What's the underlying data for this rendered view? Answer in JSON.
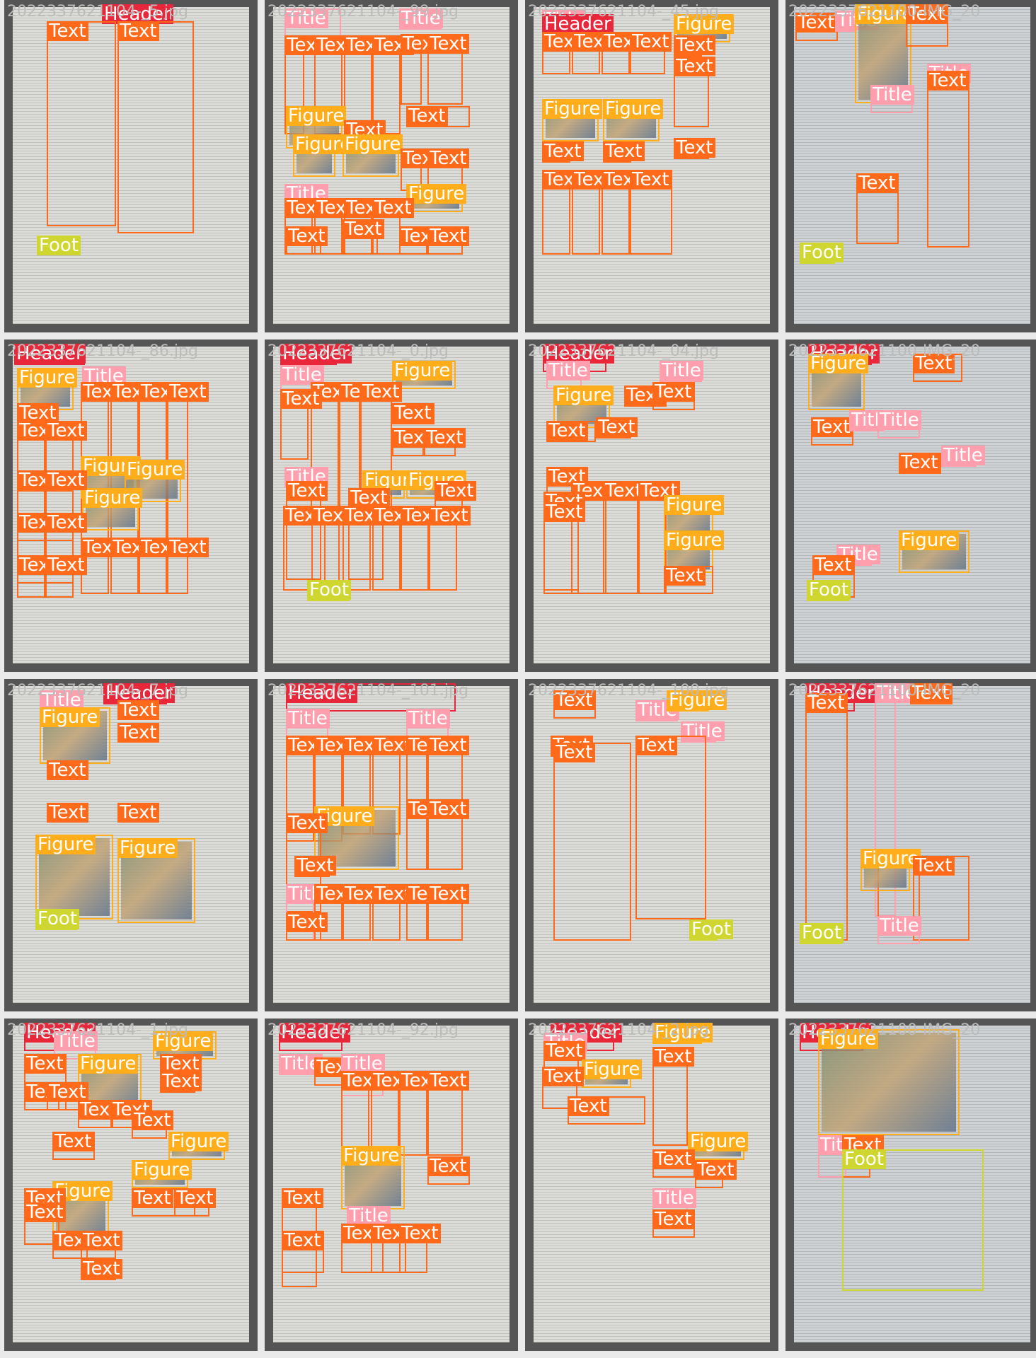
{
  "tiles": [
    {
      "filename": "2022337621104-_5.jpg",
      "labels": [
        "Header",
        "Text",
        "Text",
        "Foot"
      ]
    },
    {
      "filename": "2022337621104-_99.jpg",
      "labels": [
        "Title",
        "Title",
        "Text",
        "Text",
        "Text",
        "Text",
        "Text",
        "Text",
        "Figure",
        "Text",
        "Text",
        "Figure",
        "Figure",
        "Text",
        "Text",
        "Figure",
        "Title",
        "Text",
        "Text",
        "Text",
        "Text",
        "Text",
        "Text",
        "Text",
        "Text"
      ]
    },
    {
      "filename": "2022337621104-_45.jpg",
      "labels": [
        "Title",
        "Header",
        "Figure",
        "Text",
        "Text",
        "Text",
        "Text",
        "Text",
        "Text",
        "Figure",
        "Figure",
        "Text",
        "Text",
        "Text",
        "Text",
        "Text",
        "Text",
        "Text"
      ]
    },
    {
      "filename": "2022337621100-IMG_20",
      "labels": [
        "Text",
        "Title",
        "Figure",
        "Text",
        "Title",
        "Title",
        "Text",
        "Text",
        "Foot"
      ]
    },
    {
      "filename": "2022337621104-_86.jpg",
      "labels": [
        "Header",
        "Figure",
        "Title",
        "Text",
        "Text",
        "Text",
        "Text",
        "Text",
        "Text",
        "Text",
        "Figure",
        "Figure",
        "Figure",
        "Text",
        "Text",
        "Text",
        "Text",
        "Text",
        "Text",
        "Text",
        "Text",
        "Text",
        "Text"
      ]
    },
    {
      "filename": "2022337621104-_0.jpg",
      "labels": [
        "Header",
        "Title",
        "Figure",
        "Text",
        "Text",
        "Text",
        "Text",
        "Text",
        "Text",
        "Text",
        "Title",
        "Figure",
        "Figure",
        "Text",
        "Text",
        "Text",
        "Text",
        "Text",
        "Text",
        "Text",
        "Text",
        "Text",
        "Foot"
      ]
    },
    {
      "filename": "2022337621104-_04.jpg",
      "labels": [
        "Header",
        "Title",
        "Title",
        "Figure",
        "Text",
        "Text",
        "Text",
        "Text",
        "Text",
        "Text",
        "Text",
        "Text",
        "Text",
        "Text",
        "Figure",
        "Figure",
        "Text"
      ]
    },
    {
      "filename": "2022337621100-IMG_20",
      "labels": [
        "Header",
        "Figure",
        "Text",
        "Text",
        "Title",
        "Title",
        "Title",
        "Text",
        "Figure",
        "Title",
        "Text",
        "Foot"
      ]
    },
    {
      "filename": "2022337621104-_7.jpg",
      "labels": [
        "Title",
        "Header",
        "Figure",
        "Text",
        "Text",
        "Text",
        "Text",
        "Text",
        "Figure",
        "Figure",
        "Foot"
      ]
    },
    {
      "filename": "2022337621104-_101.jpg",
      "labels": [
        "Header",
        "Title",
        "Title",
        "Text",
        "Text",
        "Text",
        "Text",
        "Text",
        "Text",
        "Text",
        "Text",
        "Figure",
        "Text",
        "Text",
        "Title",
        "Text",
        "Text",
        "Text",
        "Text",
        "Text",
        "Text"
      ]
    },
    {
      "filename": "2022337621104-_100.jpg",
      "labels": [
        "Text",
        "Title",
        "Figure",
        "Text",
        "Title",
        "Text",
        "Text",
        "Foot"
      ]
    },
    {
      "filename": "2022337621100-IMG_20",
      "labels": [
        "Header",
        "Text",
        "Title",
        "Text",
        "Text",
        "Figure",
        "Text",
        "Title",
        "Foot"
      ]
    },
    {
      "filename": "2022337621104-_1.jpg",
      "labels": [
        "Header",
        "Title",
        "Figure",
        "Figure",
        "Text",
        "Text",
        "Text",
        "Text",
        "Text",
        "Text",
        "Text",
        "Text",
        "Figure",
        "Figure",
        "Text",
        "Figure",
        "Text",
        "Text",
        "Text",
        "Text",
        "Text",
        "Text",
        "Text"
      ]
    },
    {
      "filename": "2022337621104-_92.jpg",
      "labels": [
        "Header",
        "Title",
        "Text",
        "Title",
        "Text",
        "Text",
        "Text",
        "Text",
        "Figure",
        "Text",
        "Text",
        "Title",
        "Text",
        "Text",
        "Text",
        "Text"
      ]
    },
    {
      "filename": "2022337621104-_2.jpg",
      "labels": [
        "Header",
        "Title",
        "Figure",
        "Text",
        "Text",
        "Figure",
        "Text",
        "Text",
        "Figure",
        "Text",
        "Text",
        "Title",
        "Text"
      ]
    },
    {
      "filename": "2022337621100-IMG_20",
      "labels": [
        "Header",
        "Figure",
        "Title",
        "Text",
        "Foot"
      ]
    }
  ]
}
